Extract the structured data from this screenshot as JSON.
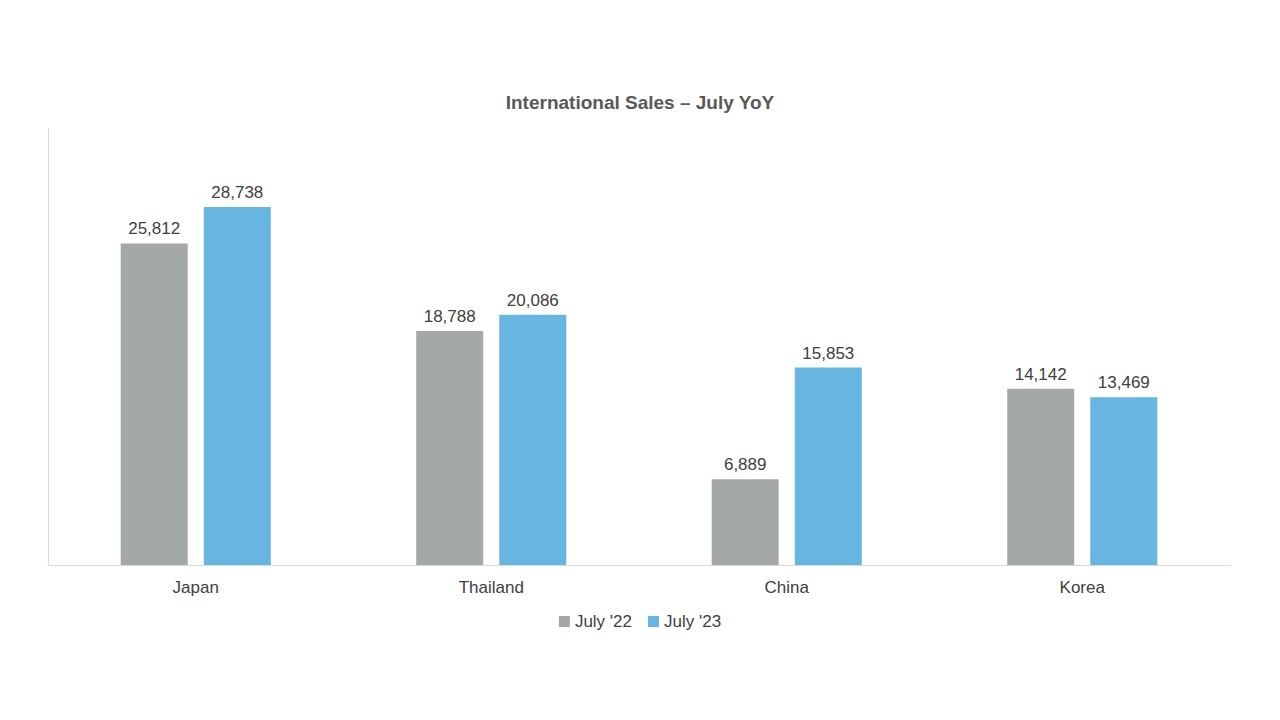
{
  "chart_data": {
    "type": "bar",
    "title": "International Sales – July YoY",
    "categories": [
      "Japan",
      "Thailand",
      "China",
      "Korea"
    ],
    "series": [
      {
        "name": "July '22",
        "color": "#a5a8a9",
        "values": [
          25812,
          18788,
          6889,
          14142
        ],
        "value_labels": [
          "25,812",
          "18,788",
          "6,889",
          "14,142"
        ]
      },
      {
        "name": "July '23",
        "color": "#67b5e1",
        "values": [
          28738,
          20086,
          15853,
          13469
        ],
        "value_labels": [
          "28,738",
          "20,086",
          "15,853",
          "13,469"
        ]
      }
    ],
    "ylim": [
      0,
      35000
    ],
    "grid": false,
    "legend": "bottom",
    "data_labels": true,
    "tick_labels": "x"
  }
}
